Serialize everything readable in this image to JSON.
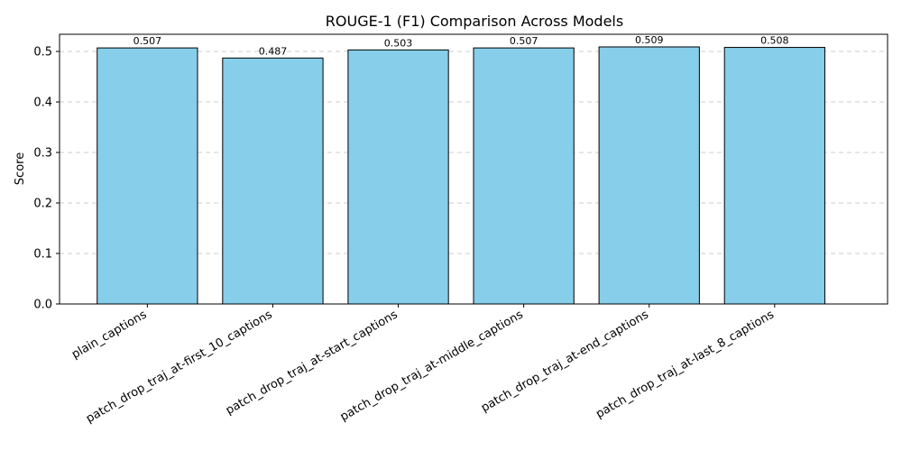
{
  "chart_data": {
    "type": "bar",
    "title": "ROUGE-1 (F1) Comparison Across Models",
    "xlabel": "",
    "ylabel": "Score",
    "categories": [
      "plain_captions",
      "patch_drop_traj_at-first_10_captions",
      "patch_drop_traj_at-start_captions",
      "patch_drop_traj_at-middle_captions",
      "patch_drop_traj_at-end_captions",
      "patch_drop_traj_at-last_8_captions"
    ],
    "values": [
      0.507,
      0.487,
      0.503,
      0.507,
      0.509,
      0.508
    ],
    "value_labels": [
      "0.507",
      "0.487",
      "0.503",
      "0.507",
      "0.509",
      "0.508"
    ],
    "ylim": [
      0,
      0.534
    ],
    "yticks": [
      0.0,
      0.1,
      0.2,
      0.3,
      0.4,
      0.5
    ],
    "ytick_labels": [
      "0.0",
      "0.1",
      "0.2",
      "0.3",
      "0.4",
      "0.5"
    ],
    "grid": "y-dashed",
    "bar_color": "#87ceeb",
    "edge_color": "#000000"
  }
}
